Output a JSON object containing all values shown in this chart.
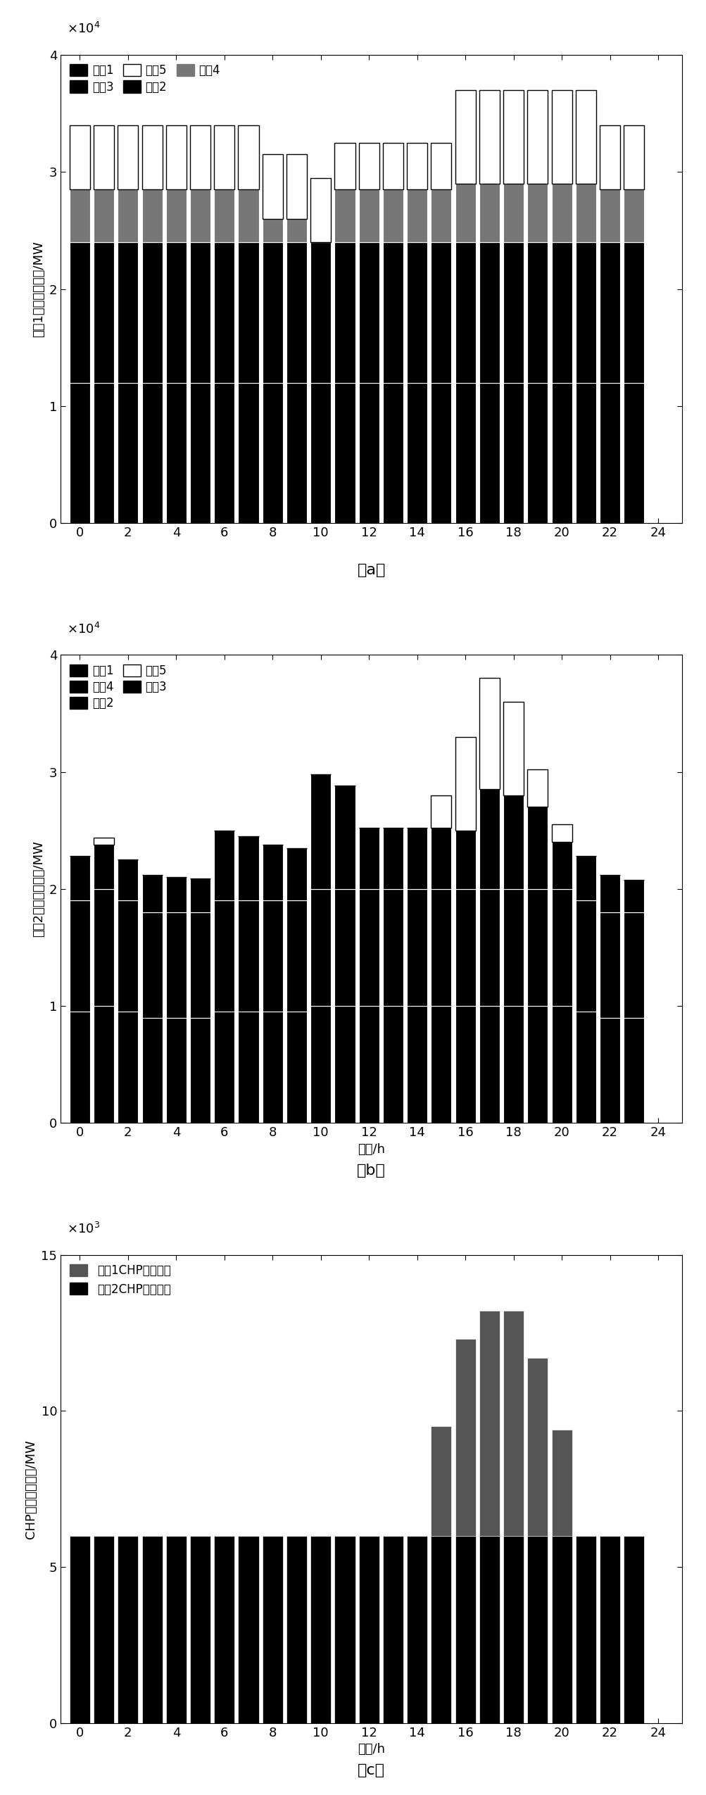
{
  "hours": [
    0,
    1,
    2,
    3,
    4,
    5,
    6,
    7,
    8,
    9,
    10,
    11,
    12,
    13,
    14,
    15,
    16,
    17,
    18,
    19,
    20,
    21,
    22,
    23
  ],
  "chart_a": {
    "title_y": "情况1火电机组出力/MW",
    "ylim": [
      0,
      40000
    ],
    "yticks": [
      0,
      10000,
      20000,
      30000,
      40000
    ],
    "ytick_labels": [
      "0",
      "1",
      "2",
      "3",
      "4"
    ],
    "colors": [
      "#000000",
      "#000000",
      "#000000",
      "#777777",
      "#ffffff"
    ],
    "unit1": [
      12000,
      12000,
      12000,
      12000,
      12000,
      12000,
      12000,
      12000,
      12000,
      12000,
      12000,
      12000,
      12000,
      12000,
      12000,
      12000,
      12000,
      12000,
      12000,
      12000,
      12000,
      12000,
      12000,
      12000
    ],
    "unit2": [
      12000,
      12000,
      12000,
      12000,
      12000,
      12000,
      12000,
      12000,
      12000,
      12000,
      12000,
      12000,
      12000,
      12000,
      12000,
      12000,
      12000,
      12000,
      12000,
      12000,
      12000,
      12000,
      12000,
      12000
    ],
    "unit3": [
      0,
      0,
      0,
      0,
      0,
      0,
      0,
      0,
      0,
      0,
      0,
      0,
      0,
      0,
      0,
      0,
      0,
      0,
      0,
      0,
      0,
      0,
      0,
      0
    ],
    "unit4": [
      4500,
      4500,
      4500,
      4500,
      4500,
      4500,
      4500,
      4500,
      2000,
      2000,
      0,
      4500,
      4500,
      4500,
      4500,
      4500,
      5000,
      5000,
      5000,
      5000,
      5000,
      5000,
      4500,
      4500
    ],
    "unit5": [
      5500,
      5500,
      5500,
      5500,
      5500,
      5500,
      5500,
      5500,
      5500,
      5500,
      5500,
      4000,
      4000,
      4000,
      4000,
      4000,
      8000,
      8000,
      8000,
      8000,
      8000,
      8000,
      5500,
      5500
    ]
  },
  "chart_b": {
    "title_y": "情况2火电机组出力/MW",
    "ylim": [
      0,
      40000
    ],
    "yticks": [
      0,
      10000,
      20000,
      30000,
      40000
    ],
    "ytick_labels": [
      "0",
      "1",
      "2",
      "3",
      "4"
    ],
    "colors": [
      "#000000",
      "#000000",
      "#000000",
      "#000000",
      "#ffffff"
    ],
    "unit1": [
      9500,
      10000,
      9500,
      9000,
      9000,
      9000,
      9500,
      9500,
      9500,
      9500,
      10000,
      10000,
      10000,
      10000,
      10000,
      10000,
      10000,
      10000,
      10000,
      10000,
      10000,
      9500,
      9000,
      9000
    ],
    "unit2": [
      9500,
      10000,
      9500,
      9000,
      9000,
      9000,
      9500,
      9500,
      9500,
      9500,
      10000,
      10000,
      10000,
      10000,
      10000,
      10000,
      10000,
      10000,
      10000,
      10000,
      10000,
      9500,
      9000,
      9000
    ],
    "unit3": [
      0,
      0,
      0,
      0,
      0,
      0,
      0,
      0,
      0,
      0,
      0,
      0,
      0,
      0,
      0,
      0,
      0,
      0,
      0,
      0,
      0,
      0,
      0,
      0
    ],
    "unit4": [
      3800,
      3800,
      3500,
      3200,
      3000,
      2900,
      6000,
      5500,
      4800,
      4500,
      9800,
      8800,
      5200,
      5200,
      5200,
      5200,
      5000,
      8500,
      8000,
      7000,
      4000,
      3800,
      3200,
      2800
    ],
    "unit5": [
      0,
      600,
      0,
      0,
      0,
      0,
      0,
      0,
      0,
      0,
      0,
      0,
      0,
      0,
      0,
      2800,
      8000,
      9500,
      8000,
      3200,
      1500,
      0,
      0,
      0
    ]
  },
  "chart_c": {
    "title_y": "CHP机组出力对比/MW",
    "xlabel": "时间/h",
    "ylim": [
      0,
      15000
    ],
    "yticks": [
      0,
      5000,
      10000,
      15000
    ],
    "ytick_labels": [
      "0",
      "5",
      "10",
      "15"
    ],
    "color_c1": "#555555",
    "color_c2": "#000000",
    "case1": [
      6000,
      6000,
      6000,
      6000,
      6000,
      6000,
      6000,
      6000,
      6000,
      6000,
      6000,
      6000,
      6000,
      6000,
      6000,
      9500,
      12300,
      13200,
      13200,
      11700,
      9400,
      6000,
      6000,
      6000
    ],
    "case2": [
      6000,
      6000,
      6000,
      6000,
      6000,
      6000,
      6000,
      6000,
      6000,
      6000,
      6000,
      6000,
      6000,
      6000,
      6000,
      6000,
      6000,
      6000,
      6000,
      6000,
      6000,
      6000,
      6000,
      6000
    ]
  },
  "legend_a": [
    "机组1",
    "机组2",
    "机组3",
    "机组4",
    "机组5"
  ],
  "legend_b": [
    "机组1",
    "机组2",
    "机组3",
    "机组4",
    "机组5"
  ],
  "legend_c": [
    "情况1CHP机组出力",
    "情况2CHP机组出力"
  ],
  "xlabel_ab": "时间/h",
  "caption_a": "（a）",
  "caption_b": "（b）",
  "caption_c": "（c）"
}
